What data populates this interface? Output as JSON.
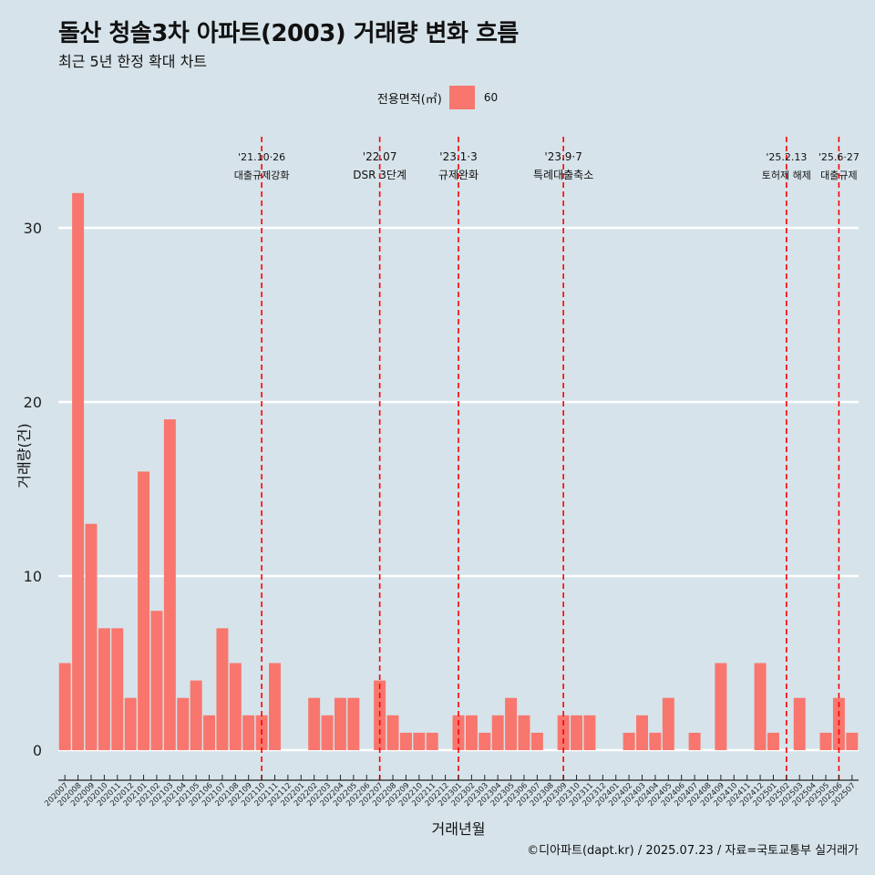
{
  "title": "돌산 청솔3차 아파트(2003) 거래량 변화 흐름",
  "subtitle": "최근 5년 한정 확대 차트",
  "caption": "©디아파트(dapt.kr) / 2025.07.23 / 자료=국토교통부 실거래가",
  "legend": {
    "title": "전용면적(㎡)",
    "label": "60",
    "color": "#f8766d"
  },
  "colors": {
    "background": "#d6e3ea",
    "bar": "#f8766d",
    "event_line": "#ff0000",
    "gridline": "#ffffff"
  },
  "chart_data": {
    "type": "bar",
    "xlabel": "거래년월",
    "ylabel": "거래량(건)",
    "ylim": [
      0,
      35
    ],
    "yticks": [
      0,
      10,
      20,
      30
    ],
    "grid": true,
    "legend_position": "top",
    "categories": [
      "202007",
      "202008",
      "202009",
      "202010",
      "202011",
      "202012",
      "202101",
      "202102",
      "202103",
      "202104",
      "202105",
      "202106",
      "202107",
      "202108",
      "202109",
      "202110",
      "202111",
      "202112",
      "202201",
      "202202",
      "202203",
      "202204",
      "202205",
      "202206",
      "202207",
      "202208",
      "202209",
      "202210",
      "202211",
      "202212",
      "202301",
      "202302",
      "202303",
      "202304",
      "202305",
      "202306",
      "202307",
      "202308",
      "202309",
      "202310",
      "202311",
      "202312",
      "202401",
      "202402",
      "202403",
      "202404",
      "202405",
      "202406",
      "202407",
      "202408",
      "202409",
      "202410",
      "202411",
      "202412",
      "202501",
      "202502",
      "202503",
      "202504",
      "202505",
      "202506",
      "202507"
    ],
    "series": [
      {
        "name": "60",
        "values": [
          5,
          32,
          13,
          7,
          7,
          3,
          16,
          8,
          19,
          3,
          4,
          2,
          7,
          5,
          2,
          2,
          5,
          0,
          0,
          3,
          2,
          3,
          3,
          0,
          4,
          2,
          1,
          1,
          1,
          0,
          2,
          2,
          1,
          2,
          3,
          2,
          1,
          0,
          2,
          2,
          2,
          0,
          0,
          1,
          2,
          1,
          3,
          0,
          1,
          0,
          5,
          0,
          0,
          5,
          1,
          0,
          3,
          0,
          1,
          3,
          1
        ]
      }
    ],
    "events": [
      {
        "date": "202110",
        "line1": "'21.10·26",
        "line2": "대출규제강화"
      },
      {
        "date": "202207",
        "line1": "'22.07",
        "line2": "DSR 3단계"
      },
      {
        "date": "202301",
        "line1": "'23.1·3",
        "line2": "규제완화"
      },
      {
        "date": "202309",
        "line1": "'23.9·7",
        "line2": "특례대출축소"
      },
      {
        "date": "202502",
        "line1": "'25.2.13",
        "line2": "토허제 해제"
      },
      {
        "date": "202506",
        "line1": "'25.6·27",
        "line2": "대출규제"
      }
    ]
  }
}
